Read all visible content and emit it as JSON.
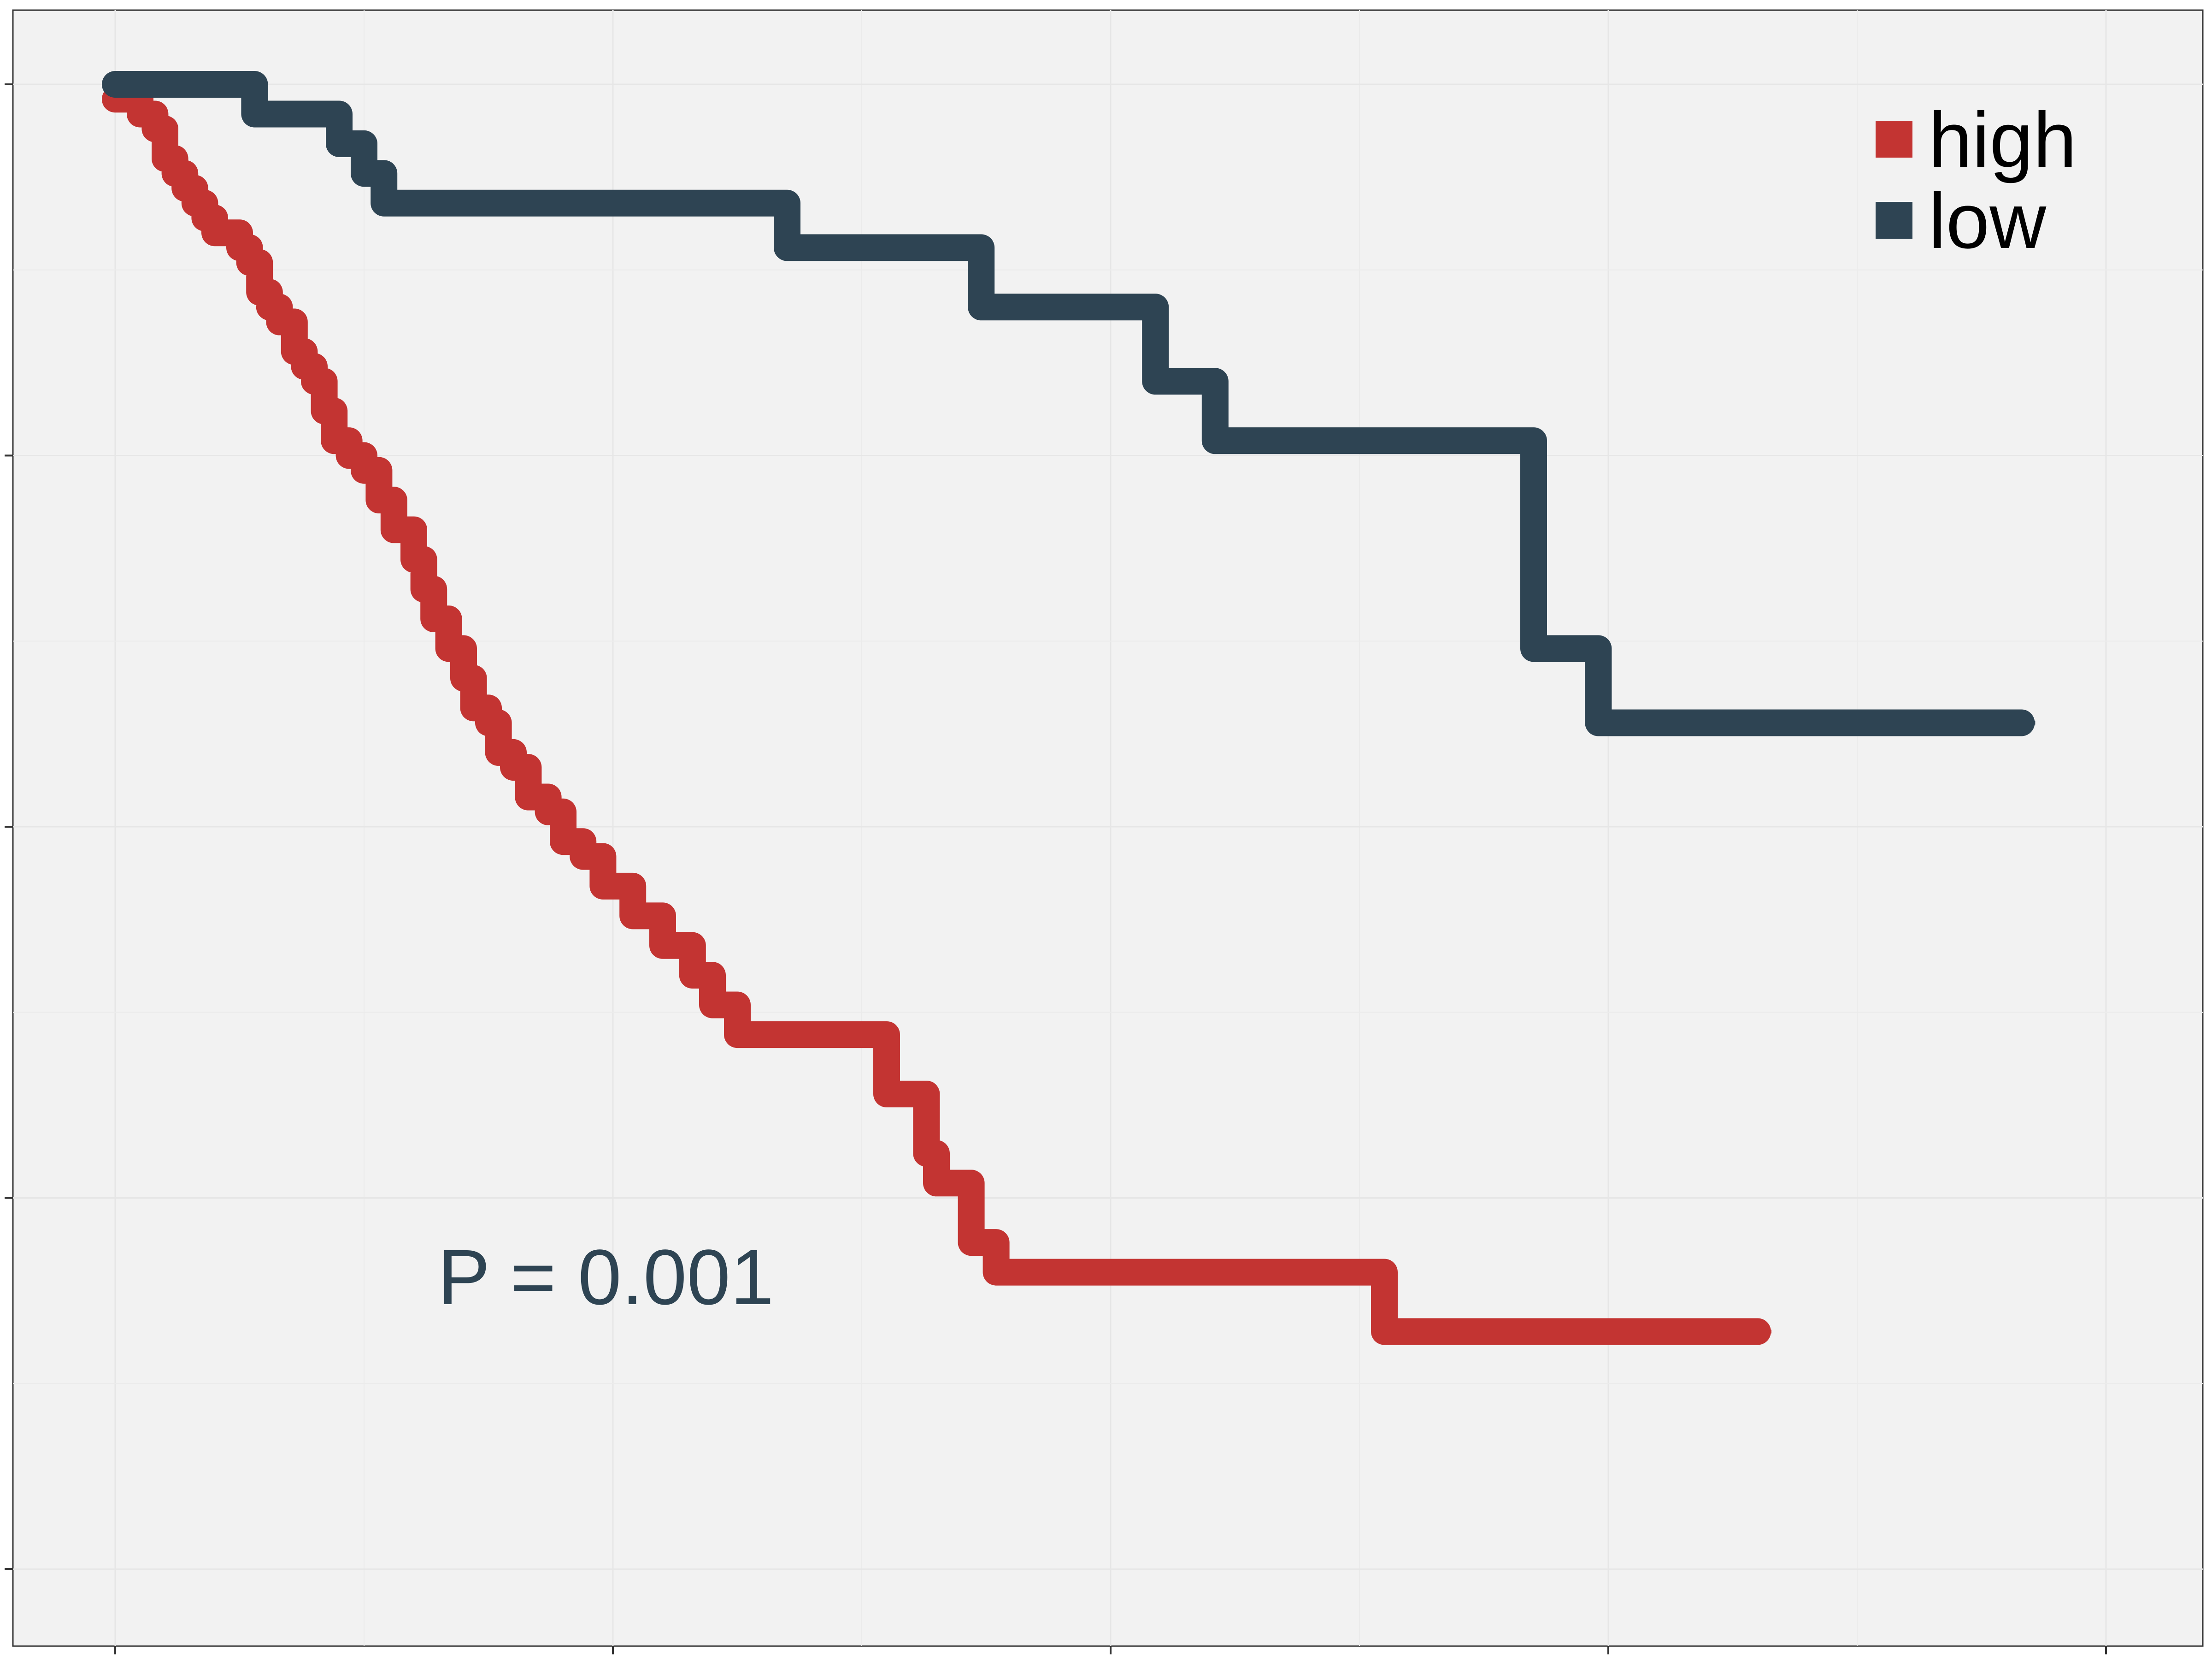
{
  "chart_data": {
    "type": "line",
    "title": "",
    "xlabel": "",
    "ylabel": "",
    "xlim": [
      0,
      4
    ],
    "ylim": [
      0,
      1
    ],
    "grid": true,
    "legend_position": "top-right",
    "annotation": "P = 0.001",
    "series": [
      {
        "name": "high",
        "color": "#C33432",
        "step": true,
        "points": [
          [
            0.0,
            0.99
          ],
          [
            0.05,
            0.98
          ],
          [
            0.08,
            0.97
          ],
          [
            0.1,
            0.95
          ],
          [
            0.12,
            0.94
          ],
          [
            0.14,
            0.93
          ],
          [
            0.16,
            0.92
          ],
          [
            0.18,
            0.91
          ],
          [
            0.2,
            0.9
          ],
          [
            0.25,
            0.89
          ],
          [
            0.27,
            0.88
          ],
          [
            0.29,
            0.86
          ],
          [
            0.31,
            0.85
          ],
          [
            0.33,
            0.84
          ],
          [
            0.36,
            0.82
          ],
          [
            0.38,
            0.81
          ],
          [
            0.4,
            0.8
          ],
          [
            0.42,
            0.78
          ],
          [
            0.44,
            0.76
          ],
          [
            0.47,
            0.75
          ],
          [
            0.5,
            0.74
          ],
          [
            0.53,
            0.72
          ],
          [
            0.56,
            0.7
          ],
          [
            0.6,
            0.68
          ],
          [
            0.62,
            0.66
          ],
          [
            0.64,
            0.64
          ],
          [
            0.67,
            0.62
          ],
          [
            0.7,
            0.6
          ],
          [
            0.72,
            0.58
          ],
          [
            0.75,
            0.57
          ],
          [
            0.77,
            0.55
          ],
          [
            0.8,
            0.54
          ],
          [
            0.83,
            0.52
          ],
          [
            0.87,
            0.51
          ],
          [
            0.9,
            0.49
          ],
          [
            0.94,
            0.48
          ],
          [
            0.98,
            0.46
          ],
          [
            1.04,
            0.44
          ],
          [
            1.1,
            0.42
          ],
          [
            1.16,
            0.4
          ],
          [
            1.2,
            0.38
          ],
          [
            1.25,
            0.36
          ],
          [
            1.55,
            0.32
          ],
          [
            1.63,
            0.28
          ],
          [
            1.65,
            0.26
          ],
          [
            1.72,
            0.22
          ],
          [
            1.77,
            0.2
          ],
          [
            2.55,
            0.16
          ],
          [
            3.3,
            0.16
          ]
        ]
      },
      {
        "name": "low",
        "color": "#2E4453",
        "step": true,
        "points": [
          [
            0.0,
            1.0
          ],
          [
            0.28,
            0.98
          ],
          [
            0.45,
            0.96
          ],
          [
            0.5,
            0.94
          ],
          [
            0.54,
            0.92
          ],
          [
            1.35,
            0.89
          ],
          [
            1.74,
            0.85
          ],
          [
            2.09,
            0.8
          ],
          [
            2.21,
            0.76
          ],
          [
            2.85,
            0.62
          ],
          [
            2.98,
            0.57
          ],
          [
            3.83,
            0.57
          ]
        ]
      }
    ]
  }
}
